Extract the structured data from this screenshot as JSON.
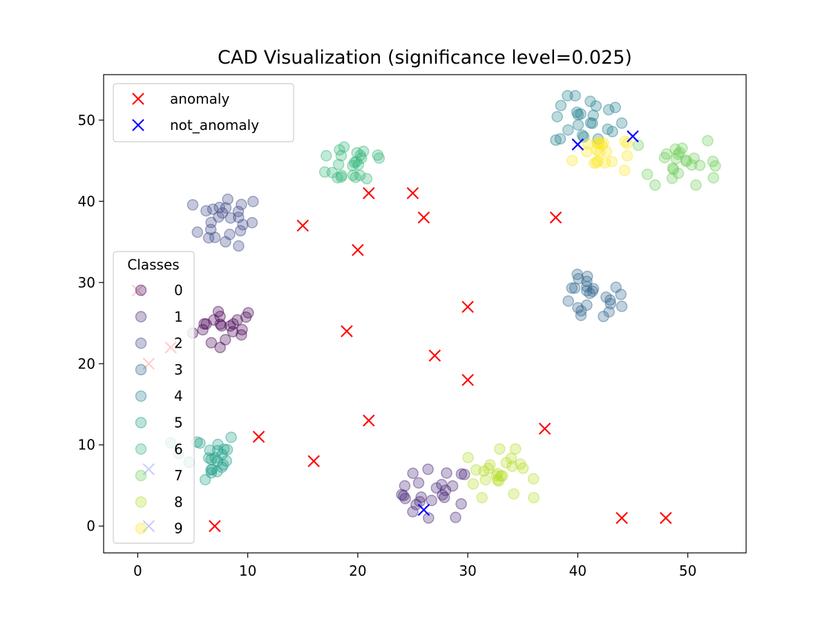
{
  "chart_data": {
    "type": "scatter",
    "title": "CAD Visualization (significance level=0.025)",
    "xlabel": "",
    "ylabel": "",
    "xlim": [
      -3.1,
      55.3
    ],
    "ylim": [
      -3.3,
      55.6
    ],
    "xticks": [
      0,
      10,
      20,
      30,
      40,
      50
    ],
    "yticks": [
      0,
      10,
      20,
      30,
      40,
      50
    ],
    "grid": false,
    "palette": {
      "anomaly": "#ff0000",
      "not_anomaly": "#0000ff",
      "classes": [
        "#440154",
        "#482878",
        "#3e4989",
        "#31688e",
        "#26828e",
        "#1f9e89",
        "#35b779",
        "#6ece58",
        "#b5de2b",
        "#fde725"
      ]
    },
    "marker_legend": {
      "placement": "upper left",
      "entries": [
        {
          "label": "anomaly",
          "color": "#ff0000"
        },
        {
          "label": "not_anomaly",
          "color": "#0000ff"
        }
      ]
    },
    "class_legend": {
      "placement": "center left",
      "title": "Classes",
      "labels": [
        "0",
        "1",
        "2",
        "3",
        "4",
        "5",
        "6",
        "7",
        "8",
        "9"
      ]
    },
    "class_clusters": [
      {
        "label": "0",
        "center": [
          8,
          24.5
        ],
        "spread": [
          3,
          2.5
        ],
        "count": 20
      },
      {
        "label": "1",
        "center": [
          27,
          4
        ],
        "spread": [
          3,
          3
        ],
        "count": 24
      },
      {
        "label": "2",
        "center": [
          8,
          37.5
        ],
        "spread": [
          3,
          3
        ],
        "count": 24
      },
      {
        "label": "3",
        "center": [
          41,
          28
        ],
        "spread": [
          3,
          3
        ],
        "count": 24
      },
      {
        "label": "4",
        "center": [
          41,
          50
        ],
        "spread": [
          3,
          3
        ],
        "count": 24
      },
      {
        "label": "5",
        "center": [
          6,
          8.5
        ],
        "spread": [
          3,
          3
        ],
        "count": 24
      },
      {
        "label": "6",
        "center": [
          20,
          45
        ],
        "spread": [
          3,
          3
        ],
        "count": 24
      },
      {
        "label": "7",
        "center": [
          49,
          45
        ],
        "spread": [
          3.5,
          3
        ],
        "count": 24
      },
      {
        "label": "8",
        "center": [
          33,
          6.5
        ],
        "spread": [
          3,
          3
        ],
        "count": 24
      },
      {
        "label": "9",
        "center": [
          42,
          46
        ],
        "spread": [
          2.5,
          2.5
        ],
        "count": 20
      }
    ],
    "anomaly_points": [
      [
        7,
        0
      ],
      [
        11,
        11
      ],
      [
        15,
        37
      ],
      [
        16,
        8
      ],
      [
        19,
        24
      ],
      [
        20,
        34
      ],
      [
        21,
        41
      ],
      [
        21,
        13
      ],
      [
        25,
        41
      ],
      [
        26,
        38
      ],
      [
        27,
        21
      ],
      [
        30,
        27
      ],
      [
        30,
        18
      ],
      [
        37,
        12
      ],
      [
        38,
        38
      ],
      [
        44,
        1
      ],
      [
        48,
        1
      ],
      [
        1,
        20
      ],
      [
        3,
        22
      ],
      [
        0,
        29
      ]
    ],
    "not_anomaly_points": [
      [
        26,
        2
      ],
      [
        40,
        47
      ],
      [
        45,
        48
      ],
      [
        1,
        7
      ],
      [
        1,
        0
      ]
    ]
  }
}
